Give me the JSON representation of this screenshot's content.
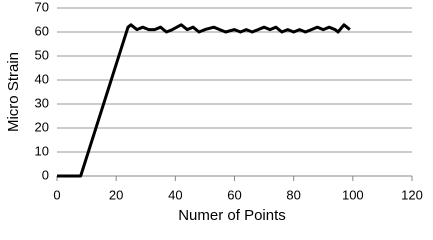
{
  "chart_data": {
    "type": "line",
    "x_label": "Numer of Points",
    "y_label": "Micro Strain",
    "x": [
      0,
      8,
      24,
      25,
      27,
      29,
      31,
      33,
      35,
      37,
      39,
      42,
      44,
      46,
      48,
      50,
      53,
      55,
      57,
      60,
      62,
      64,
      66,
      68,
      70,
      72,
      74,
      76,
      78,
      80,
      82,
      84,
      86,
      88,
      90,
      92,
      94,
      95,
      97,
      99
    ],
    "series": [
      {
        "color": "#000000",
        "values": [
          0,
          0,
          62,
          63,
          61,
          62,
          61,
          61,
          62,
          60,
          61,
          63,
          61,
          62,
          60,
          61,
          62,
          61,
          60,
          61,
          60,
          61,
          60,
          61,
          62,
          61,
          62,
          60,
          61,
          60,
          61,
          60,
          61,
          62,
          61,
          62,
          61,
          60,
          63,
          61
        ]
      }
    ],
    "xlim": [
      0,
      120
    ],
    "xticks": [
      0,
      20,
      40,
      60,
      80,
      100,
      120
    ],
    "ylim": [
      0,
      70
    ],
    "yticks": [
      0,
      10,
      20,
      30,
      40,
      50,
      60,
      70
    ],
    "grid": true
  }
}
